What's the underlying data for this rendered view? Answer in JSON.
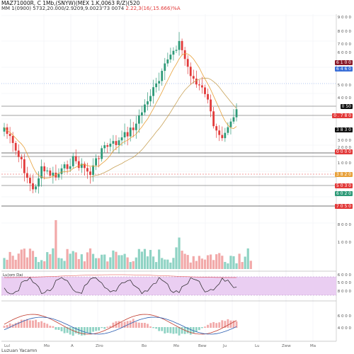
{
  "header": {
    "title": "MAZ71000R, C 1Mb,(SNYW)(MEX 1.K,0063 R/Z)(520",
    "ohlc_prefix": "MM 1(0900) 5732,20.000/2.9209,9.0023'73 0074",
    "ohlc_change": "2.22,3(16/,15.666)%A"
  },
  "footer": {
    "brand": "Luzuan  Yacamn"
  },
  "colors": {
    "up": "#2e9a78",
    "down": "#e23a3a",
    "ma_orange": "#e8a13a",
    "ma_blue": "#3a6fd8",
    "rsi_band": "#e6c6f0",
    "macd_hist_up": "#8fd3c4",
    "macd_hist_down": "#f2a9a9"
  },
  "price_labels": [
    {
      "text": "6 1 0 0",
      "bg": "#8a1a2a",
      "fg": "#ffffff"
    },
    {
      "text": "6 4 6 0",
      "bg": "#3a6fd8",
      "fg": "#ffffff"
    },
    {
      "text": "0 50",
      "bg": "#111111",
      "fg": "#ffffff"
    },
    {
      "text": "0 . 7 8 0",
      "bg": "#e23a3a",
      "fg": "#ffffff"
    },
    {
      "text": "3 8 3 0",
      "bg": "#111111",
      "fg": "#ffffff"
    },
    {
      "text": "0 0 0 0",
      "bg": "#e23a3a",
      "fg": "#ffffff"
    },
    {
      "text": "3 8 2 0",
      "bg": "#e8a13a",
      "fg": "#ffffff"
    },
    {
      "text": "5 0 3 0",
      "bg": "#e23a3a",
      "fg": "#ffffff"
    },
    {
      "text": "6 0 2 0",
      "bg": "#2e9a78",
      "fg": "#ffffff"
    },
    {
      "text": "7 0 5 0",
      "bg": "#e23a3a",
      "fg": "#ffffff"
    }
  ],
  "axis_labels": [
    "9 0 0 0",
    "8 0 0 0",
    "7 0 0 0",
    "6 0 0 0",
    "5 0 0 0",
    "4 0 0 0",
    "3 0 0 0",
    "2 0 0 0",
    "1 0 0 0",
    "8 0 0 0",
    "1 0 0 0"
  ],
  "x_labels": [
    "Lul",
    "Mo",
    "A",
    "Ziro",
    "Bo",
    "Mo",
    "Bew",
    "Ju",
    "Lu",
    "Zww",
    "Ma"
  ],
  "indicators": {
    "rsi_title": "Lu(om Dai",
    "rsi_axis": [
      "6 0 0 0",
      "5 0 0 0",
      "8 0 0 0"
    ],
    "macd_axis": [
      "6 0 0 0",
      "4 0 0 0"
    ]
  }
}
